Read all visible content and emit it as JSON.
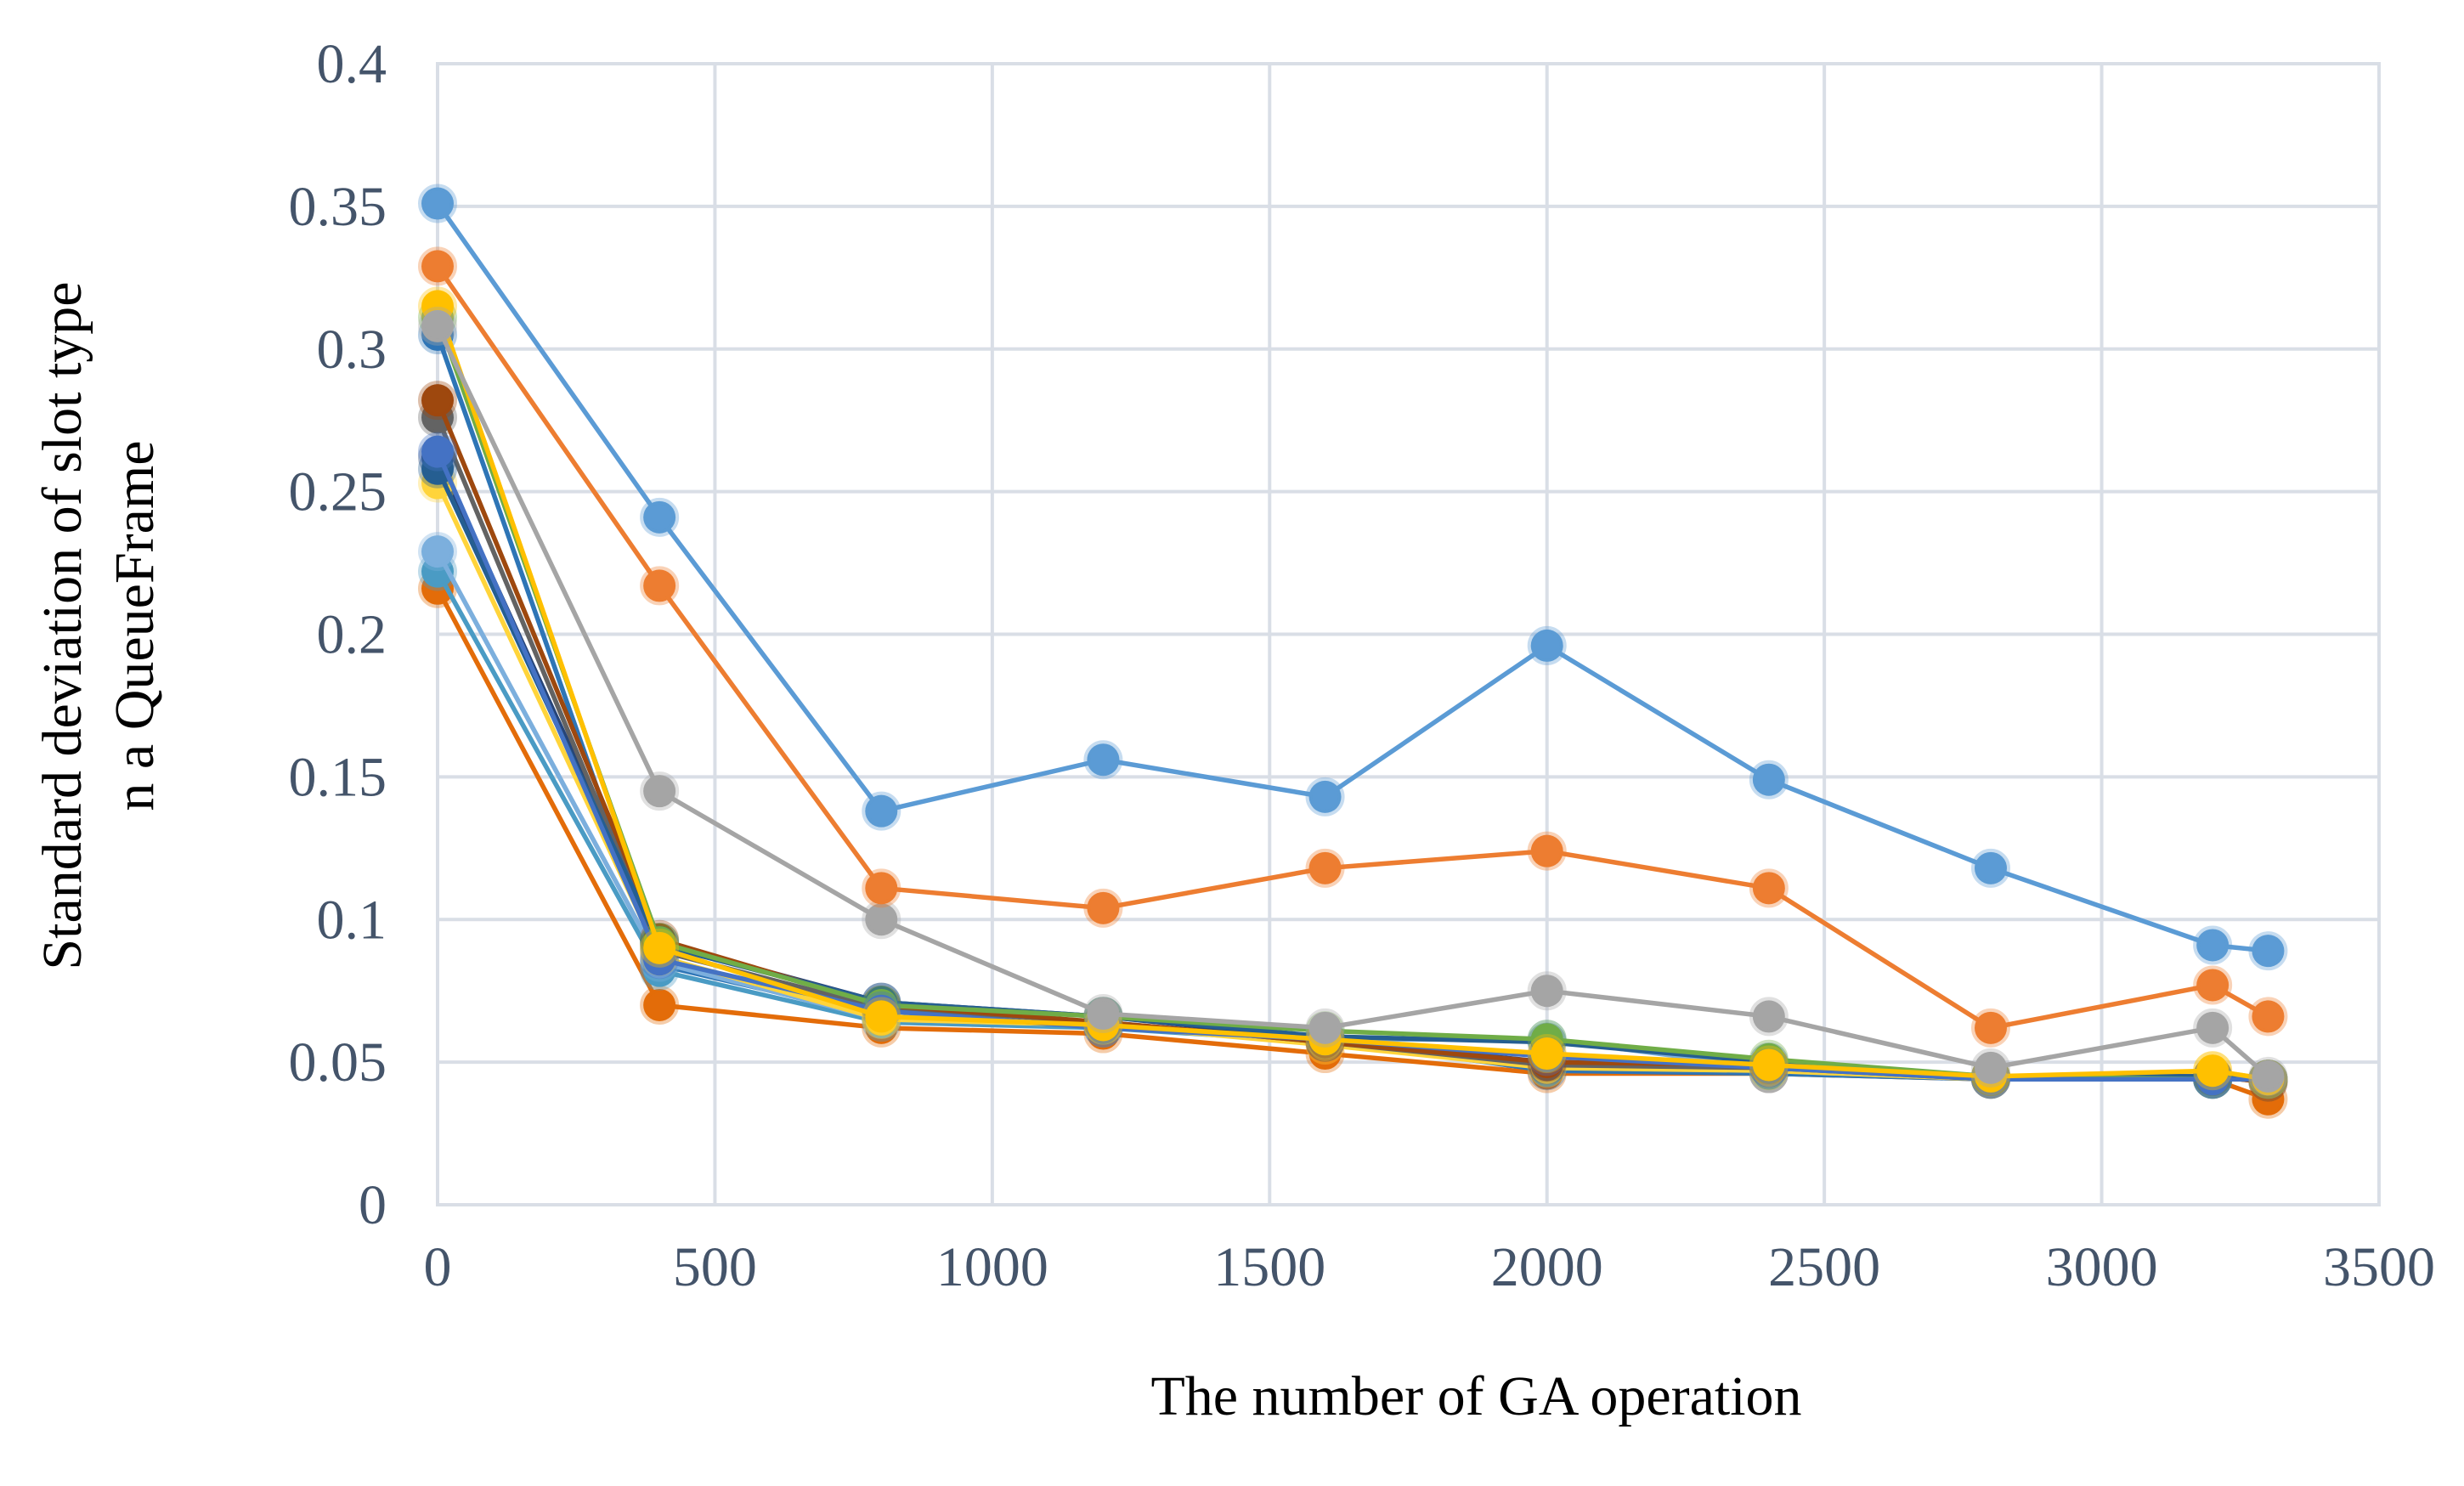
{
  "chart_data": {
    "type": "line",
    "title": "",
    "xlabel": "The number of GA operation",
    "ylabel_lines": [
      "Standard deviation of slot type",
      "n a QueueFrame"
    ],
    "xlim": [
      0,
      3500
    ],
    "ylim": [
      0,
      0.4
    ],
    "x_ticks": [
      "0",
      "500",
      "1000",
      "1500",
      "2000",
      "2500",
      "3000",
      "3500"
    ],
    "y_ticks": [
      "0",
      "0.05",
      "0.1",
      "0.15",
      "0.2",
      "0.25",
      "0.3",
      "0.35",
      "0.4"
    ],
    "grid": true,
    "legend": "none",
    "x": [
      0,
      400,
      800,
      1200,
      1600,
      2000,
      2400,
      2800,
      3200,
      3300
    ],
    "series": [
      {
        "color": "#5b9bd5",
        "values": [
          0.351,
          0.241,
          0.138,
          0.156,
          0.143,
          0.196,
          0.149,
          0.118,
          0.091,
          0.089
        ]
      },
      {
        "color": "#ed7d31",
        "values": [
          0.329,
          0.217,
          0.111,
          0.104,
          0.118,
          0.124,
          0.111,
          0.062,
          0.077,
          0.066
        ]
      },
      {
        "color": "#a5a5a5",
        "values": [
          0.308,
          0.145,
          0.1,
          0.067,
          0.062,
          0.075,
          0.066,
          0.048,
          0.062,
          0.045
        ]
      },
      {
        "color": "#ffc000",
        "values": [
          0.315,
          0.09,
          0.066,
          0.063,
          0.058,
          0.053,
          0.049,
          0.045,
          0.047,
          0.044
        ]
      },
      {
        "color": "#4472c4",
        "values": [
          0.264,
          0.086,
          0.068,
          0.062,
          0.058,
          0.052,
          0.048,
          0.044,
          0.044,
          0.044
        ]
      },
      {
        "color": "#70ad47",
        "values": [
          0.311,
          0.092,
          0.07,
          0.066,
          0.061,
          0.058,
          0.051,
          0.045,
          0.044,
          0.044
        ]
      },
      {
        "color": "#255e91",
        "values": [
          0.258,
          0.091,
          0.071,
          0.066,
          0.059,
          0.057,
          0.05,
          0.045,
          0.045,
          0.044
        ]
      },
      {
        "color": "#9e480e",
        "values": [
          0.282,
          0.093,
          0.07,
          0.064,
          0.057,
          0.05,
          0.049,
          0.045,
          0.045,
          0.043
        ]
      },
      {
        "color": "#636363",
        "values": [
          0.276,
          0.089,
          0.069,
          0.064,
          0.057,
          0.049,
          0.048,
          0.044,
          0.045,
          0.043
        ]
      },
      {
        "color": "#ffd43b",
        "values": [
          0.253,
          0.087,
          0.065,
          0.063,
          0.056,
          0.048,
          0.047,
          0.044,
          0.047,
          0.044
        ]
      },
      {
        "color": "#264478",
        "values": [
          0.262,
          0.092,
          0.071,
          0.066,
          0.058,
          0.05,
          0.049,
          0.045,
          0.044,
          0.044
        ]
      },
      {
        "color": "#7cafdd",
        "values": [
          0.229,
          0.085,
          0.065,
          0.063,
          0.058,
          0.058,
          0.048,
          0.045,
          0.044,
          0.044
        ]
      },
      {
        "color": "#4a9bc4",
        "values": [
          0.222,
          0.082,
          0.064,
          0.062,
          0.057,
          0.05,
          0.047,
          0.044,
          0.044,
          0.044
        ]
      },
      {
        "color": "#2e75b6",
        "values": [
          0.305,
          0.084,
          0.066,
          0.063,
          0.058,
          0.047,
          0.046,
          0.044,
          0.044,
          0.044
        ]
      },
      {
        "color": "#e36c09",
        "values": [
          0.216,
          0.07,
          0.062,
          0.06,
          0.053,
          0.046,
          0.046,
          0.044,
          0.044,
          0.037
        ]
      }
    ]
  }
}
